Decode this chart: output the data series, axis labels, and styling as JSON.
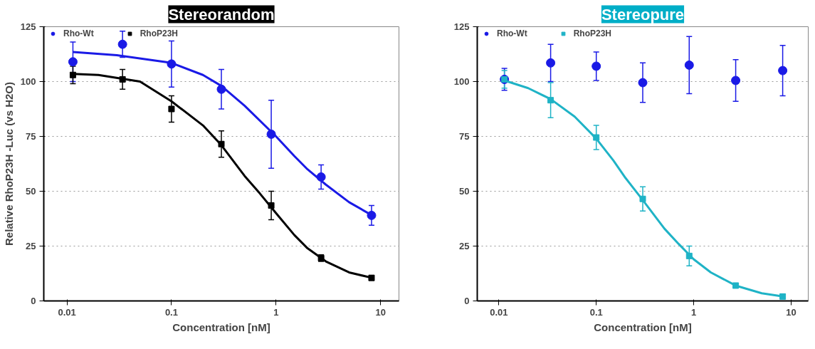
{
  "chart_data": [
    {
      "type": "scatter",
      "title": "Stereorandom",
      "xlabel": "Concentration [nM]",
      "ylabel": "Relative RhoP23H -Luc (vs H2O)",
      "log": "x",
      "xlim": [
        0.006,
        15
      ],
      "xticks": [
        0.01,
        0.1,
        1,
        10
      ],
      "ylim": [
        0,
        125
      ],
      "yticks": [
        0,
        25,
        50,
        75,
        100,
        125
      ],
      "grid": "y",
      "legend": "top left",
      "x": [
        0.0114,
        0.034,
        0.1,
        0.3,
        0.9,
        2.7,
        8.2
      ],
      "series": [
        {
          "name": "Rho-Wt",
          "color": "#1a1ae6",
          "marker": "circle",
          "values": [
            109,
            117,
            108,
            96.5,
            76,
            56.5,
            39
          ],
          "errors": [
            9,
            6,
            10.5,
            9,
            15.5,
            5.5,
            4.5
          ]
        },
        {
          "name": "RhoP23H",
          "color": "#000000",
          "marker": "square",
          "values": [
            103,
            101,
            87.5,
            71.5,
            43.5,
            19.5,
            10.5
          ],
          "errors": [
            4,
            4.5,
            6,
            6,
            6.5,
            1.5,
            1
          ]
        },
        {
          "type": "line",
          "color": "#1a1ae6",
          "x": [
            0.0114,
            0.03,
            0.1,
            0.2,
            0.3,
            0.5,
            1,
            1.5,
            2,
            3,
            5,
            8.3
          ],
          "values": [
            113.5,
            112,
            108.5,
            103,
            98,
            89,
            75,
            66,
            60,
            53,
            45,
            39
          ]
        },
        {
          "type": "line",
          "color": "#000000",
          "x": [
            0.0114,
            0.02,
            0.05,
            0.1,
            0.2,
            0.3,
            0.5,
            0.7,
            1,
            1.5,
            2,
            3,
            5,
            8.3
          ],
          "values": [
            103.5,
            103,
            100,
            91,
            80,
            71,
            57,
            49,
            40,
            30,
            24,
            18,
            13,
            10.5
          ]
        }
      ]
    },
    {
      "type": "scatter",
      "title": "Stereopure",
      "xlabel": "Concentration [nM]",
      "log": "x",
      "xlim": [
        0.006,
        15
      ],
      "xticks": [
        0.01,
        0.1,
        1,
        10
      ],
      "ylim": [
        0,
        125
      ],
      "yticks": [
        0,
        25,
        50,
        75,
        100,
        125
      ],
      "grid": "y",
      "legend": "top left",
      "x": [
        0.0114,
        0.034,
        0.1,
        0.3,
        0.9,
        2.7,
        8.2
      ],
      "series": [
        {
          "name": "Rho-Wt",
          "color": "#1a1ae6",
          "marker": "circle",
          "values": [
            101,
            108.5,
            107,
            99.5,
            107.5,
            100.5,
            105
          ],
          "errors": [
            5,
            8.5,
            6.5,
            9,
            13,
            9.5,
            11.5
          ]
        },
        {
          "name": "RhoP23H",
          "color": "#1fb3c6",
          "marker": "square",
          "values": [
            101,
            91.5,
            74.5,
            46.5,
            20.5,
            7,
            2
          ],
          "errors": [
            4,
            8,
            5.5,
            5.5,
            4.5,
            1,
            1
          ]
        },
        {
          "type": "line",
          "color": "#1fb3c6",
          "x": [
            0.0114,
            0.02,
            0.034,
            0.06,
            0.1,
            0.15,
            0.2,
            0.3,
            0.5,
            0.7,
            1,
            1.5,
            2.7,
            5,
            8.3
          ],
          "values": [
            100.5,
            97,
            92,
            84,
            74,
            64,
            56,
            46,
            33,
            26,
            19,
            13,
            7,
            3.5,
            2
          ]
        }
      ]
    }
  ]
}
